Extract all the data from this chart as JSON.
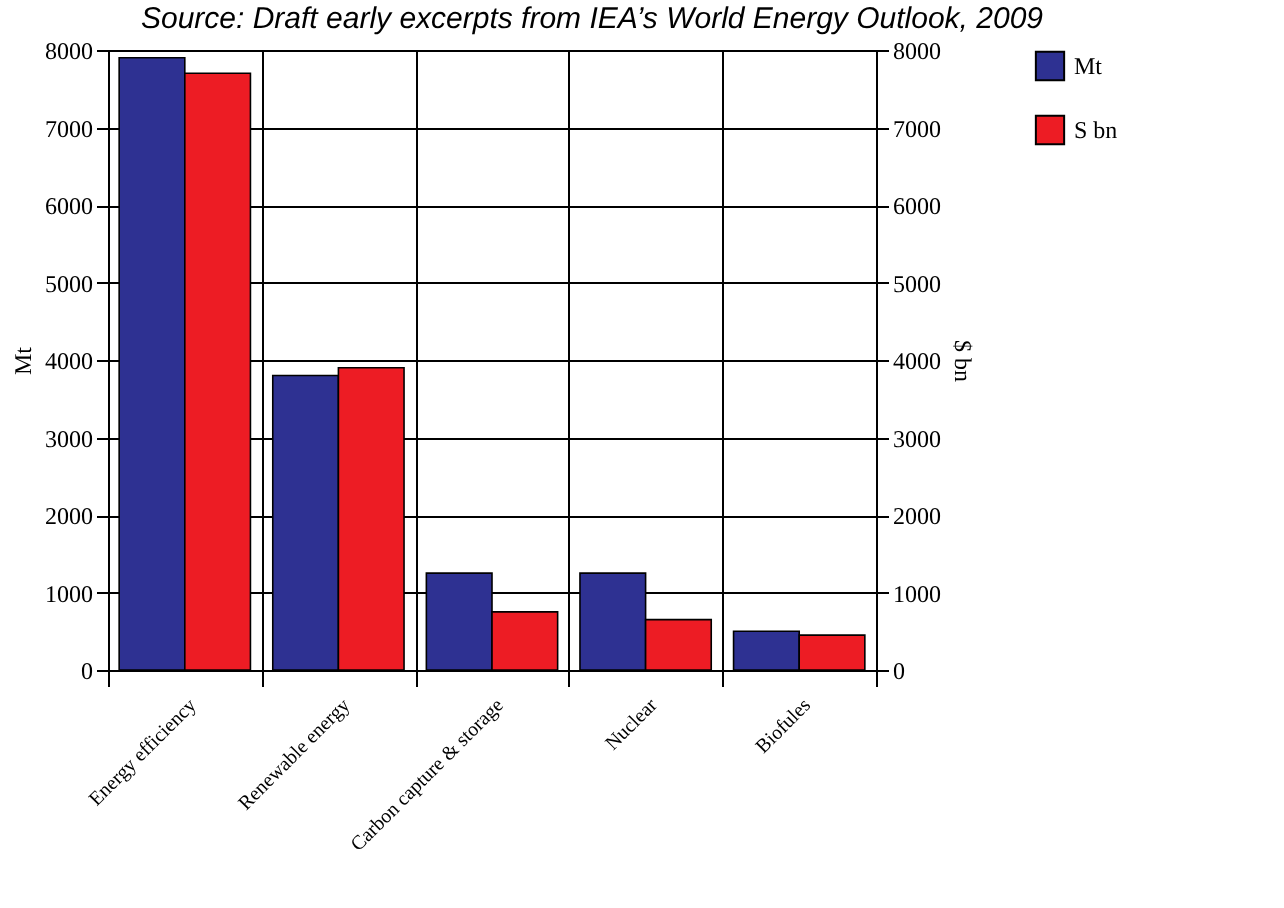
{
  "chart_data": {
    "type": "bar",
    "annotations": [
      "Source: Draft early excerpts from IEA’s World Energy Outlook, 2009"
    ],
    "categories": [
      "Energy efficiency",
      "Renewable energy",
      "Carbon capture & storage",
      "Nuclear",
      "Biofules"
    ],
    "series": [
      {
        "name": "Mt",
        "color": "#2e3192",
        "values": [
          7900,
          3800,
          1250,
          1250,
          500
        ]
      },
      {
        "name": "S bn",
        "color": "#ed1c24",
        "axis": "y2",
        "values": [
          7700,
          3900,
          750,
          650,
          450
        ]
      }
    ],
    "ylabel": "Mt",
    "y2label": "$ bn",
    "ylim": [
      0,
      8000
    ],
    "yticks": [
      0,
      1000,
      2000,
      3000,
      4000,
      5000,
      6000,
      7000,
      8000
    ],
    "y2lim": [
      0,
      8000
    ],
    "y2ticks": [
      0,
      1000,
      2000,
      3000,
      4000,
      5000,
      6000,
      7000,
      8000
    ],
    "grid": true,
    "legend": "top right"
  }
}
